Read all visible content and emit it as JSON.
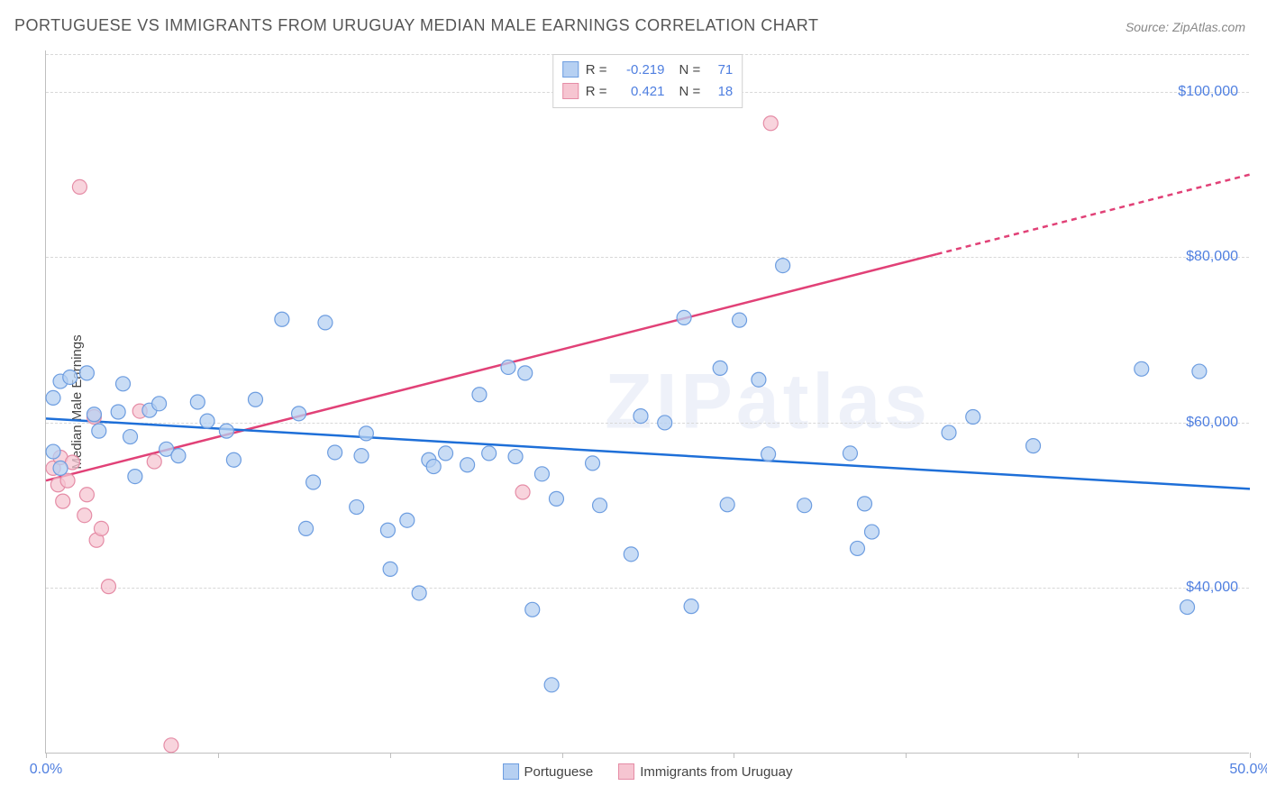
{
  "title": "PORTUGUESE VS IMMIGRANTS FROM URUGUAY MEDIAN MALE EARNINGS CORRELATION CHART",
  "source": "Source: ZipAtlas.com",
  "watermark": "ZIPatlas",
  "chart": {
    "type": "scatter",
    "ylabel": "Median Male Earnings",
    "xlim": [
      0,
      50
    ],
    "ylim": [
      20000,
      105000
    ],
    "xtick_labels": {
      "0": "0.0%",
      "50": "50.0%"
    },
    "xtick_marks": [
      0,
      7.14,
      14.29,
      21.43,
      28.57,
      35.71,
      42.86,
      50
    ],
    "ytick_grid": [
      40000,
      60000,
      80000,
      100000
    ],
    "ytick_labels": {
      "40000": "$40,000",
      "60000": "$60,000",
      "80000": "$80,000",
      "100000": "$100,000"
    },
    "background_color": "#ffffff",
    "grid_color": "#d8d8d8",
    "axis_color": "#bfbfbf",
    "marker_radius": 8,
    "marker_stroke_width": 1.2,
    "trend_line_width": 2.5,
    "series": [
      {
        "name": "Portuguese",
        "fill": "#b6d0f2",
        "stroke": "#6d9de0",
        "line_color": "#1e6fd8",
        "R": "-0.219",
        "N": "71",
        "trend": {
          "x0": 0,
          "y0": 60500,
          "x1": 50,
          "y1": 52000,
          "dashed_from": 50
        },
        "points": [
          [
            0.3,
            63000
          ],
          [
            0.3,
            56500
          ],
          [
            0.6,
            65000
          ],
          [
            0.6,
            54500
          ],
          [
            1.0,
            65500
          ],
          [
            1.7,
            66000
          ],
          [
            2.0,
            61000
          ],
          [
            2.2,
            59000
          ],
          [
            3.0,
            61300
          ],
          [
            3.2,
            64700
          ],
          [
            3.5,
            58300
          ],
          [
            3.7,
            53500
          ],
          [
            4.3,
            61500
          ],
          [
            4.7,
            62300
          ],
          [
            5.0,
            56800
          ],
          [
            5.5,
            56000
          ],
          [
            6.3,
            62500
          ],
          [
            6.7,
            60200
          ],
          [
            7.5,
            59000
          ],
          [
            7.8,
            55500
          ],
          [
            8.7,
            62800
          ],
          [
            9.8,
            72500
          ],
          [
            10.5,
            61100
          ],
          [
            10.8,
            47200
          ],
          [
            11.1,
            52800
          ],
          [
            11.6,
            72100
          ],
          [
            12.0,
            56400
          ],
          [
            12.9,
            49800
          ],
          [
            13.1,
            56000
          ],
          [
            13.3,
            58700
          ],
          [
            14.2,
            47000
          ],
          [
            14.3,
            42300
          ],
          [
            15.0,
            48200
          ],
          [
            15.5,
            39400
          ],
          [
            15.9,
            55500
          ],
          [
            16.1,
            54700
          ],
          [
            16.6,
            56300
          ],
          [
            17.5,
            54900
          ],
          [
            18.0,
            63400
          ],
          [
            18.4,
            56300
          ],
          [
            19.2,
            66700
          ],
          [
            19.5,
            55900
          ],
          [
            19.9,
            66000
          ],
          [
            20.2,
            37400
          ],
          [
            20.6,
            53800
          ],
          [
            21.0,
            28300
          ],
          [
            21.2,
            50800
          ],
          [
            22.7,
            55100
          ],
          [
            23.0,
            50000
          ],
          [
            24.3,
            44100
          ],
          [
            24.7,
            60800
          ],
          [
            25.7,
            60000
          ],
          [
            26.5,
            72700
          ],
          [
            26.8,
            37800
          ],
          [
            28.0,
            66600
          ],
          [
            28.3,
            50100
          ],
          [
            28.8,
            72400
          ],
          [
            29.6,
            65200
          ],
          [
            30.0,
            56200
          ],
          [
            30.6,
            79000
          ],
          [
            31.5,
            50000
          ],
          [
            33.4,
            56300
          ],
          [
            33.7,
            44800
          ],
          [
            34.0,
            50200
          ],
          [
            34.3,
            46800
          ],
          [
            37.5,
            58800
          ],
          [
            38.5,
            60700
          ],
          [
            41.0,
            57200
          ],
          [
            45.5,
            66500
          ],
          [
            47.4,
            37700
          ],
          [
            47.9,
            66200
          ]
        ]
      },
      {
        "name": "Immigrants from Uruguay",
        "fill": "#f6c5d1",
        "stroke": "#e58ca6",
        "line_color": "#e14177",
        "R": "0.421",
        "N": "18",
        "trend": {
          "x0": 0,
          "y0": 53000,
          "x1": 50,
          "y1": 90000,
          "dashed_from": 37
        },
        "points": [
          [
            0.3,
            54500
          ],
          [
            0.5,
            52500
          ],
          [
            0.6,
            55800
          ],
          [
            0.7,
            50500
          ],
          [
            0.9,
            53000
          ],
          [
            1.1,
            55200
          ],
          [
            1.4,
            88500
          ],
          [
            1.6,
            48800
          ],
          [
            1.7,
            51300
          ],
          [
            2.0,
            60700
          ],
          [
            2.1,
            45800
          ],
          [
            2.3,
            47200
          ],
          [
            2.6,
            40200
          ],
          [
            3.9,
            61400
          ],
          [
            4.5,
            55300
          ],
          [
            5.2,
            21000
          ],
          [
            19.8,
            51600
          ],
          [
            30.1,
            96200
          ]
        ]
      }
    ],
    "legend": [
      "Portuguese",
      "Immigrants from Uruguay"
    ]
  }
}
